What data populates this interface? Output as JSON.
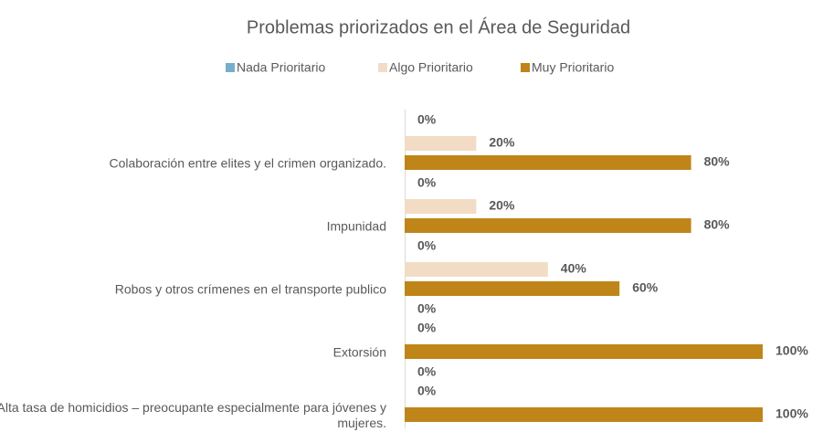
{
  "chart_data": {
    "type": "hbar",
    "title": "Problemas priorizados en el Área de Seguridad",
    "categories": [
      "Colaboración entre elites y el crimen organizado.",
      "Impunidad",
      "Robos y otros crímenes en el transporte publico",
      "Extorsión",
      "Alta tasa de homicidios – preocupante especialmente para jóvenes y mujeres."
    ],
    "series": [
      {
        "name": "Nada Prioritario",
        "color": "#75aecb",
        "values": [
          0,
          0,
          0,
          0,
          0
        ],
        "value_labels": [
          "0%",
          "0%",
          "0%",
          "0%",
          "0%"
        ]
      },
      {
        "name": "Algo Prioritario",
        "color": "#f2dcc6",
        "values": [
          20,
          20,
          40,
          0,
          0
        ],
        "value_labels": [
          "20%",
          "20%",
          "40%",
          "0%",
          "0%"
        ]
      },
      {
        "name": "Muy Prioritario",
        "color": "#bf8519",
        "values": [
          80,
          80,
          60,
          100,
          100
        ],
        "value_labels": [
          "80%",
          "80%",
          "60%",
          "100%",
          "100%"
        ]
      }
    ],
    "xlim": [
      0,
      100
    ],
    "legend": "top"
  }
}
